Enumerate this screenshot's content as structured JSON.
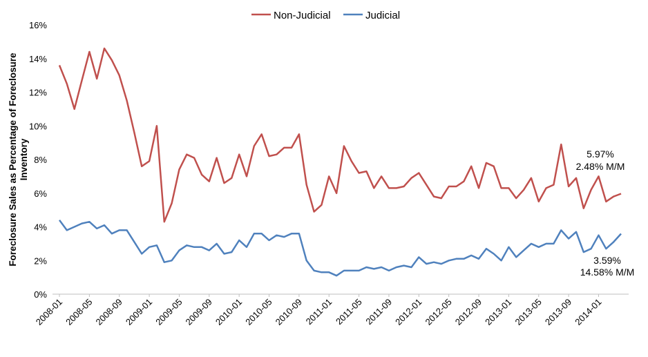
{
  "chart_data": {
    "type": "line",
    "title": "",
    "xlabel": "",
    "ylabel": "Foreclosure Sales as Percentage of Foreclosure Inventory",
    "ylabel_lines": [
      "Foreclosure Sales as Percentage of Foreclosure",
      "Inventory"
    ],
    "ylim": [
      0,
      16
    ],
    "yticks": [
      0,
      2,
      4,
      6,
      8,
      10,
      12,
      14,
      16
    ],
    "ytick_labels": [
      "0%",
      "2%",
      "4%",
      "6%",
      "8%",
      "10%",
      "12%",
      "14%",
      "16%"
    ],
    "grid": false,
    "legend_position": "top-center",
    "x_months_count": 76,
    "xtick_labels": [
      "2008-01",
      "2008-05",
      "2008-09",
      "2009-01",
      "2009-05",
      "2009-09",
      "2010-01",
      "2010-05",
      "2010-09",
      "2011-01",
      "2011-05",
      "2011-09",
      "2012-01",
      "2012-05",
      "2012-09",
      "2013-01",
      "2013-05",
      "2013-09",
      "2014-01"
    ],
    "series": [
      {
        "name": "Non-Judicial",
        "color": "#c0504d",
        "values": [
          13.6,
          12.5,
          11.0,
          12.7,
          14.4,
          12.8,
          14.6,
          13.9,
          13.0,
          11.5,
          9.6,
          7.6,
          7.9,
          10.0,
          4.3,
          5.4,
          7.4,
          8.3,
          8.1,
          7.1,
          6.7,
          8.1,
          6.6,
          6.9,
          8.3,
          7.0,
          8.8,
          9.5,
          8.2,
          8.3,
          8.7,
          8.7,
          9.5,
          6.5,
          4.9,
          5.3,
          7.0,
          6.0,
          8.8,
          7.9,
          7.2,
          7.3,
          6.3,
          7.0,
          6.3,
          6.3,
          6.4,
          6.9,
          7.2,
          6.5,
          5.8,
          5.7,
          6.4,
          6.4,
          6.7,
          7.6,
          6.3,
          7.8,
          7.6,
          6.3,
          6.3,
          5.7,
          6.2,
          6.9,
          5.5,
          6.3,
          6.5,
          8.9,
          6.4,
          6.9,
          5.1,
          6.2,
          7.0,
          5.5,
          5.8,
          5.97
        ],
        "annotation": [
          "5.97%",
          "2.48% M/M"
        ]
      },
      {
        "name": "Judicial",
        "color": "#4f81bd",
        "values": [
          4.4,
          3.8,
          4.0,
          4.2,
          4.3,
          3.9,
          4.1,
          3.6,
          3.8,
          3.8,
          3.1,
          2.4,
          2.8,
          2.9,
          1.9,
          2.0,
          2.6,
          2.9,
          2.8,
          2.8,
          2.6,
          3.0,
          2.4,
          2.5,
          3.2,
          2.8,
          3.6,
          3.6,
          3.2,
          3.5,
          3.4,
          3.6,
          3.6,
          2.0,
          1.4,
          1.3,
          1.3,
          1.1,
          1.4,
          1.4,
          1.4,
          1.6,
          1.5,
          1.6,
          1.4,
          1.6,
          1.7,
          1.6,
          2.2,
          1.8,
          1.9,
          1.8,
          2.0,
          2.1,
          2.1,
          2.3,
          2.1,
          2.7,
          2.4,
          2.0,
          2.8,
          2.2,
          2.6,
          3.0,
          2.8,
          3.0,
          3.0,
          3.8,
          3.3,
          3.7,
          2.5,
          2.7,
          3.5,
          2.7,
          3.1,
          3.59
        ],
        "annotation": [
          "3.59%",
          "14.58% M/M"
        ]
      }
    ]
  }
}
